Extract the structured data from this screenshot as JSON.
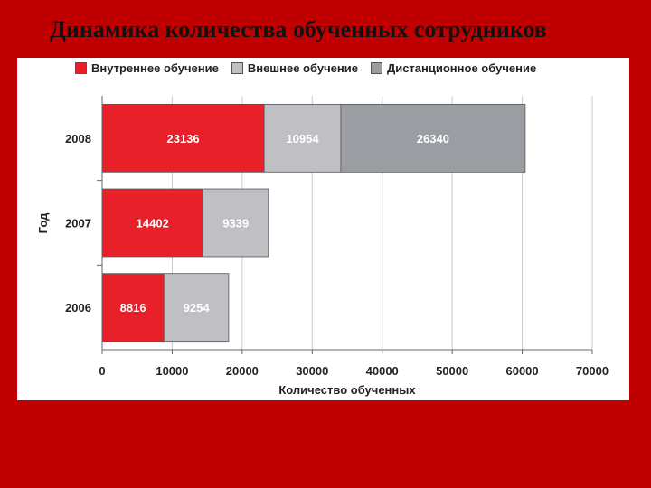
{
  "slide": {
    "title": "Динамика количества обученных сотрудников"
  },
  "colors": {
    "background": "#c00000",
    "internal": "#e8202a",
    "external": "#c0c0c4",
    "distance": "#9a9ea2"
  },
  "chart_data": {
    "type": "bar",
    "orientation": "horizontal",
    "stacked": true,
    "title": "",
    "xlabel": "Количество обученных",
    "ylabel": "Год",
    "categories": [
      "2008",
      "2007",
      "2006"
    ],
    "series": [
      {
        "name": "Внутреннее обучение",
        "values": [
          23136,
          14402,
          8816
        ],
        "labels": [
          "23136",
          "14402",
          "8816"
        ]
      },
      {
        "name": "Внешнее обучение",
        "values": [
          10954,
          9339,
          9254
        ],
        "labels": [
          "10954",
          "9339",
          "9254"
        ]
      },
      {
        "name": "Дистанционное обучение",
        "values": [
          26340,
          null,
          null
        ],
        "labels": [
          "26340",
          "",
          ""
        ]
      }
    ],
    "xlim": [
      0,
      70000
    ],
    "xticks": [
      "0",
      "10000",
      "20000",
      "30000",
      "40000",
      "50000",
      "60000",
      "70000"
    ],
    "grid": "vertical",
    "legend_position": "top"
  }
}
